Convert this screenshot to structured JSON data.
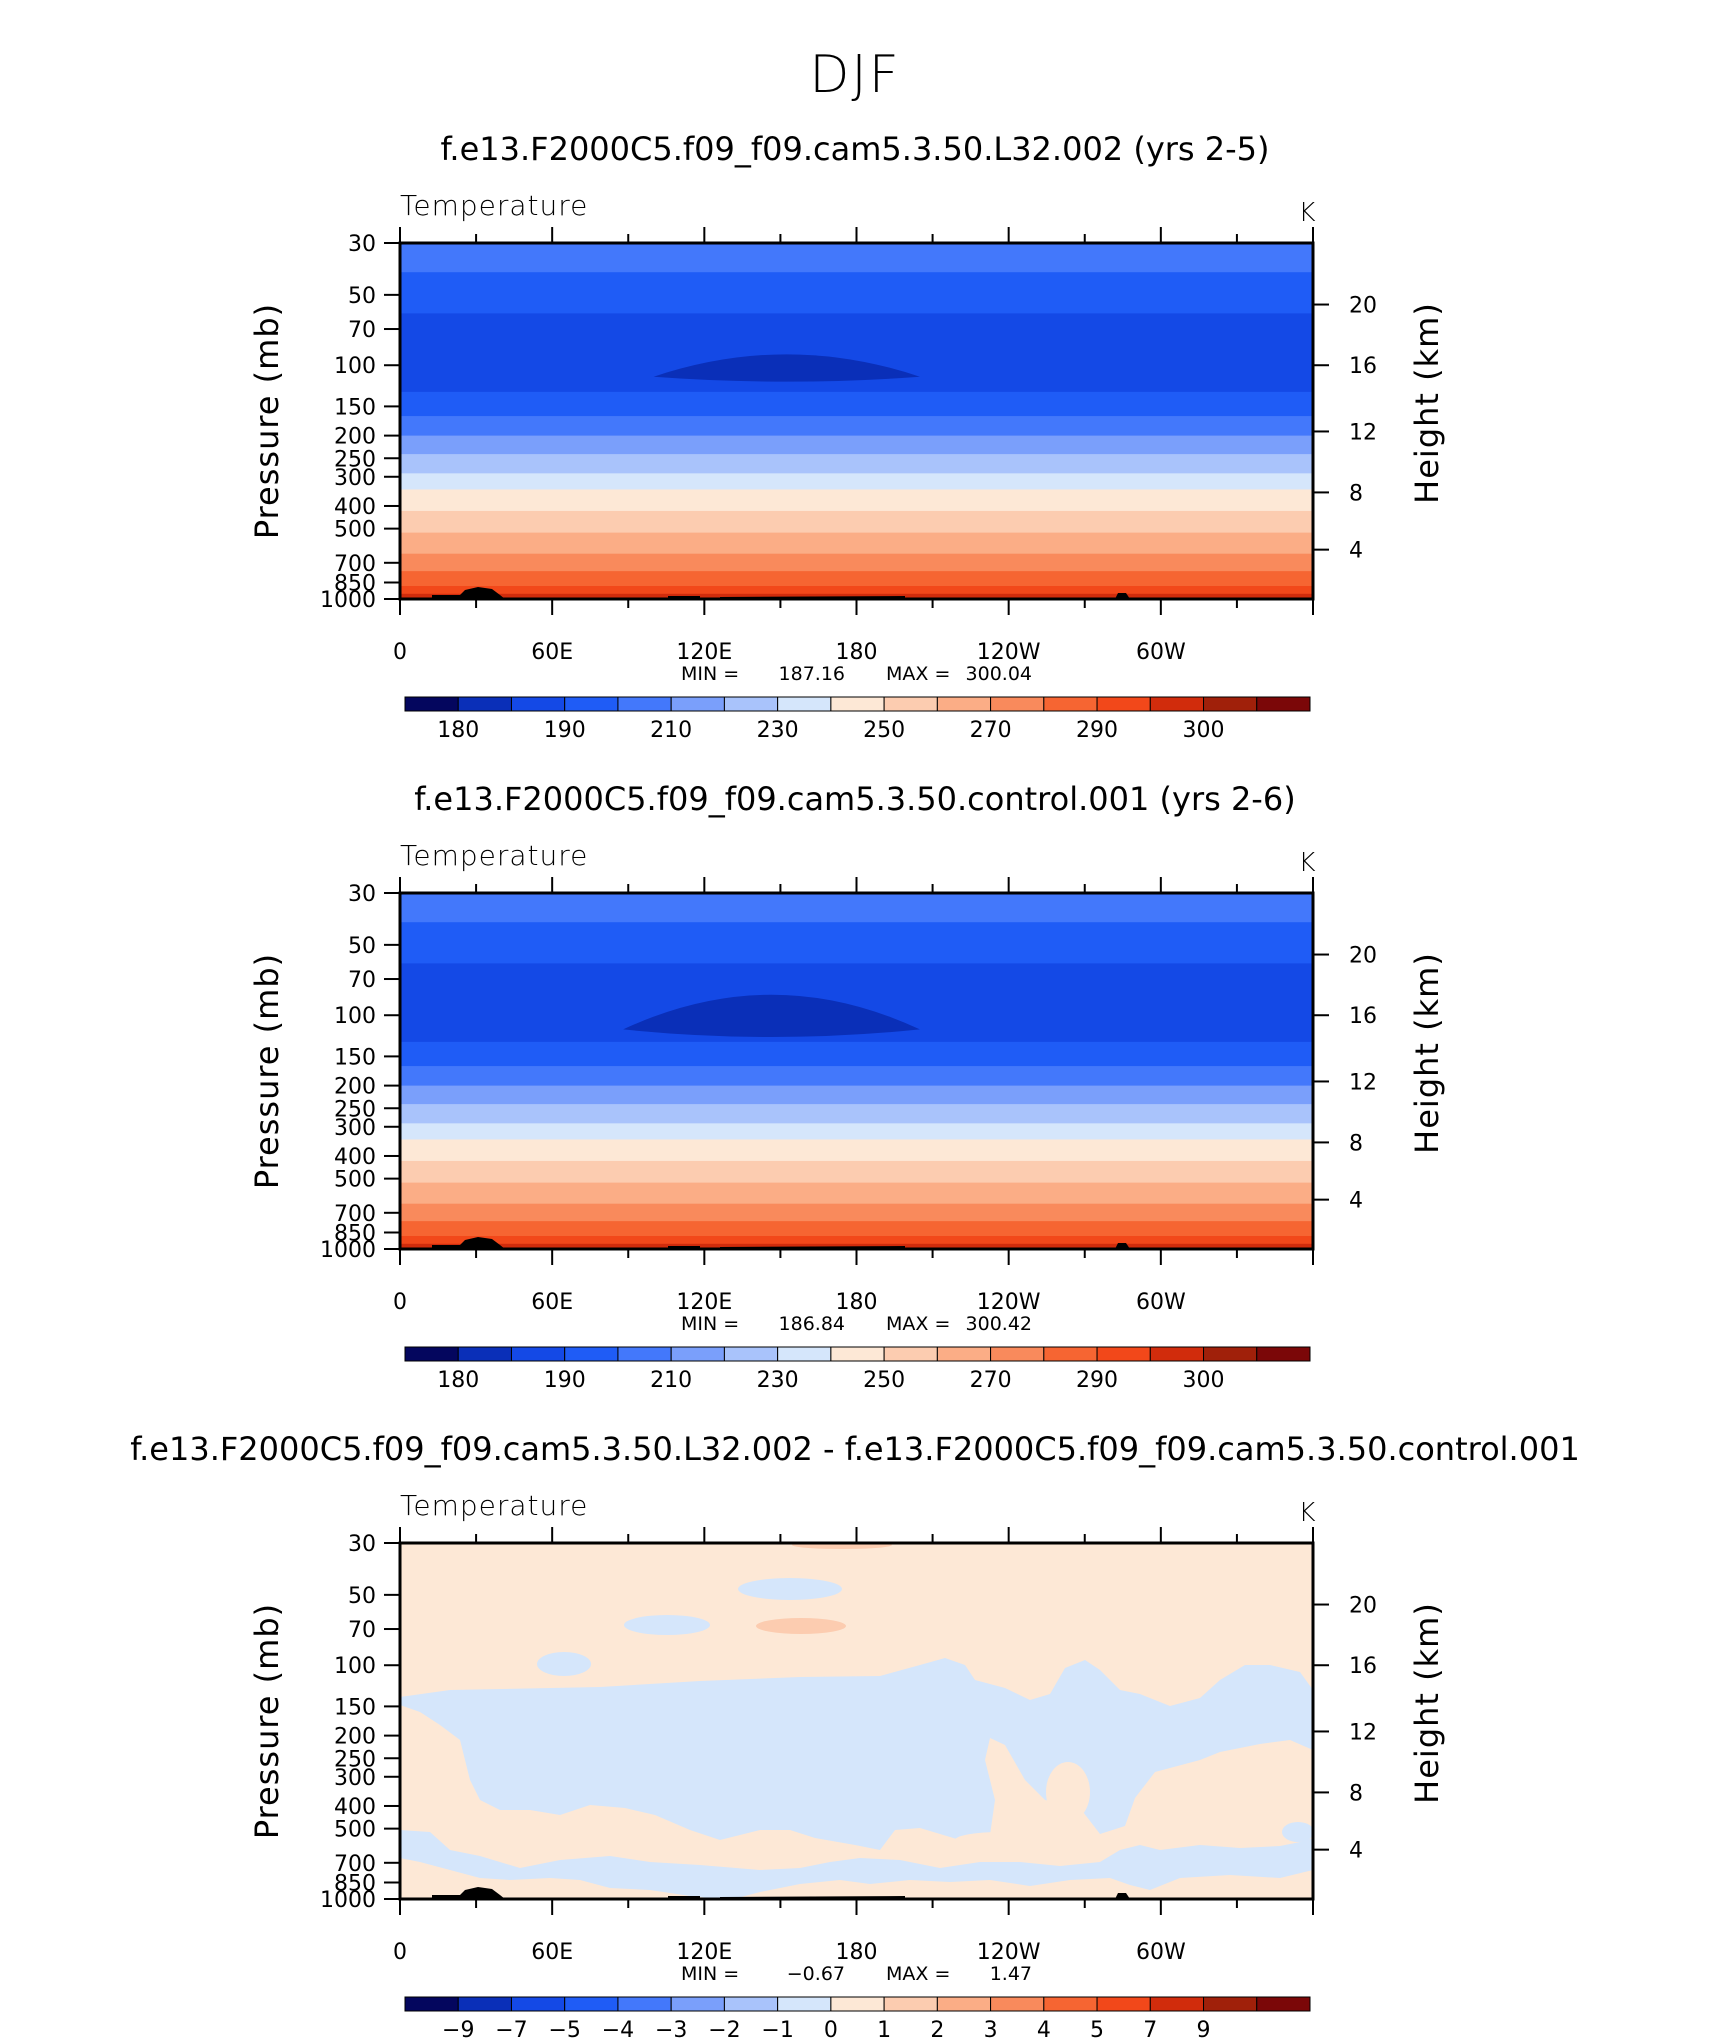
{
  "figure_title": "DJF",
  "colors": {
    "abs": [
      "#04065e",
      "#0a2fb8",
      "#1449e6",
      "#1f5cf6",
      "#4378fb",
      "#7a9ffb",
      "#a9c3fb",
      "#d5e6fb",
      "#fde8d6",
      "#fcccb0",
      "#fbad86",
      "#f98a5c",
      "#f66532",
      "#f2481a",
      "#d12c0c",
      "#a0200a",
      "#7b0708"
    ],
    "diff": [
      "#04065e",
      "#0a2fb8",
      "#1449e6",
      "#1f5cf6",
      "#4378fb",
      "#7a9ffb",
      "#a9c3fb",
      "#d5e6fb",
      "#fde8d6",
      "#fcccb0",
      "#fbad86",
      "#f98a5c",
      "#f66532",
      "#f2481a",
      "#d12c0c",
      "#a0200a",
      "#7b0708"
    ],
    "panel_bg_diff": "#fde8d6",
    "blue_patch": "#d5e6fb",
    "orange_patch": "#fcccb0",
    "topo": "#000000"
  },
  "chart_data": [
    {
      "type": "heatmap",
      "title": "f.e13.F2000C5.f09_f09.cam5.3.50.L32.002 (yrs 2-5)",
      "subtitle": "Temperature",
      "units": "K",
      "ylabel_left": "Pressure (mb)",
      "ylabel_right": "Height (km)",
      "x_tick_labels": [
        "0",
        "60E",
        "120E",
        "180",
        "120W",
        "60W"
      ],
      "y_tick_labels": [
        "30",
        "50",
        "70",
        "100",
        "150",
        "200",
        "250",
        "300",
        "400",
        "500",
        "700",
        "850",
        "1000"
      ],
      "y_right_tick_labels": [
        "20",
        "16",
        "12",
        "8",
        "4"
      ],
      "min_label": "MIN =",
      "min_value": "187.16",
      "max_label": "MAX =",
      "max_value": "300.04",
      "colorbar_labels": [
        "180",
        "190",
        "210",
        "230",
        "250",
        "270",
        "290",
        "300"
      ],
      "bands_p": [
        {
          "p": 30,
          "level": 4
        },
        {
          "p": 40,
          "level": 3
        },
        {
          "p": 60,
          "level": 2
        },
        {
          "p": 130,
          "level": 3
        },
        {
          "p": 165,
          "level": 4
        },
        {
          "p": 200,
          "level": 5
        },
        {
          "p": 240,
          "level": 6
        },
        {
          "p": 290,
          "level": 7
        },
        {
          "p": 340,
          "level": 8
        },
        {
          "p": 420,
          "level": 9
        },
        {
          "p": 520,
          "level": 10
        },
        {
          "p": 640,
          "level": 11
        },
        {
          "p": 760,
          "level": 12
        },
        {
          "p": 880,
          "level": 13
        }
      ],
      "min_patch": {
        "lon_start": 100,
        "lon_end": 205,
        "p_top": 85,
        "p_bottom": 112,
        "level": 1
      },
      "x": [
        0,
        60,
        120,
        180,
        240,
        300
      ],
      "y": [
        30,
        50,
        70,
        100,
        150,
        200,
        250,
        300,
        400,
        500,
        700,
        850,
        1000
      ],
      "ylim": [
        30,
        1000
      ],
      "xlim": [
        0,
        360
      ]
    },
    {
      "type": "heatmap",
      "title": "f.e13.F2000C5.f09_f09.cam5.3.50.control.001 (yrs 2-6)",
      "subtitle": "Temperature",
      "units": "K",
      "ylabel_left": "Pressure (mb)",
      "ylabel_right": "Height (km)",
      "x_tick_labels": [
        "0",
        "60E",
        "120E",
        "180",
        "120W",
        "60W"
      ],
      "y_tick_labels": [
        "30",
        "50",
        "70",
        "100",
        "150",
        "200",
        "250",
        "300",
        "400",
        "500",
        "700",
        "850",
        "1000"
      ],
      "y_right_tick_labels": [
        "20",
        "16",
        "12",
        "8",
        "4"
      ],
      "min_label": "MIN =",
      "min_value": "186.84",
      "max_label": "MAX =",
      "max_value": "300.42",
      "colorbar_labels": [
        "180",
        "190",
        "210",
        "230",
        "250",
        "270",
        "290",
        "300"
      ],
      "bands_p": [
        {
          "p": 30,
          "level": 4
        },
        {
          "p": 40,
          "level": 3
        },
        {
          "p": 60,
          "level": 2
        },
        {
          "p": 130,
          "level": 3
        },
        {
          "p": 165,
          "level": 4
        },
        {
          "p": 200,
          "level": 5
        },
        {
          "p": 240,
          "level": 6
        },
        {
          "p": 290,
          "level": 7
        },
        {
          "p": 340,
          "level": 8
        },
        {
          "p": 420,
          "level": 9
        },
        {
          "p": 520,
          "level": 10
        },
        {
          "p": 640,
          "level": 11
        },
        {
          "p": 760,
          "level": 12
        },
        {
          "p": 880,
          "level": 13
        }
      ],
      "min_patch": {
        "lon_start": 88,
        "lon_end": 205,
        "p_top": 75,
        "p_bottom": 115,
        "level": 1
      },
      "x": [
        0,
        60,
        120,
        180,
        240,
        300
      ],
      "y": [
        30,
        50,
        70,
        100,
        150,
        200,
        250,
        300,
        400,
        500,
        700,
        850,
        1000
      ],
      "ylim": [
        30,
        1000
      ],
      "xlim": [
        0,
        360
      ]
    },
    {
      "type": "heatmap",
      "title": "f.e13.F2000C5.f09_f09.cam5.3.50.L32.002 - f.e13.F2000C5.f09_f09.cam5.3.50.control.001",
      "subtitle": "Temperature",
      "units": "K",
      "ylabel_left": "Pressure (mb)",
      "ylabel_right": "Height (km)",
      "x_tick_labels": [
        "0",
        "60E",
        "120E",
        "180",
        "120W",
        "60W"
      ],
      "y_tick_labels": [
        "30",
        "50",
        "70",
        "100",
        "150",
        "200",
        "250",
        "300",
        "400",
        "500",
        "700",
        "850",
        "1000"
      ],
      "y_right_tick_labels": [
        "20",
        "16",
        "12",
        "8",
        "4"
      ],
      "min_label": "MIN =",
      "min_value": "−0.67",
      "max_label": "MAX =",
      "max_value": "1.47",
      "colorbar_labels": [
        "−9",
        "−7",
        "−5",
        "−4",
        "−3",
        "−2",
        "−1",
        "0",
        "1",
        "2",
        "3",
        "4",
        "5",
        "7",
        "9"
      ],
      "x": [
        0,
        60,
        120,
        180,
        240,
        300
      ],
      "y": [
        30,
        50,
        70,
        100,
        150,
        200,
        250,
        300,
        400,
        500,
        700,
        850,
        1000
      ],
      "ylim": [
        30,
        1000
      ],
      "xlim": [
        0,
        360
      ]
    }
  ]
}
